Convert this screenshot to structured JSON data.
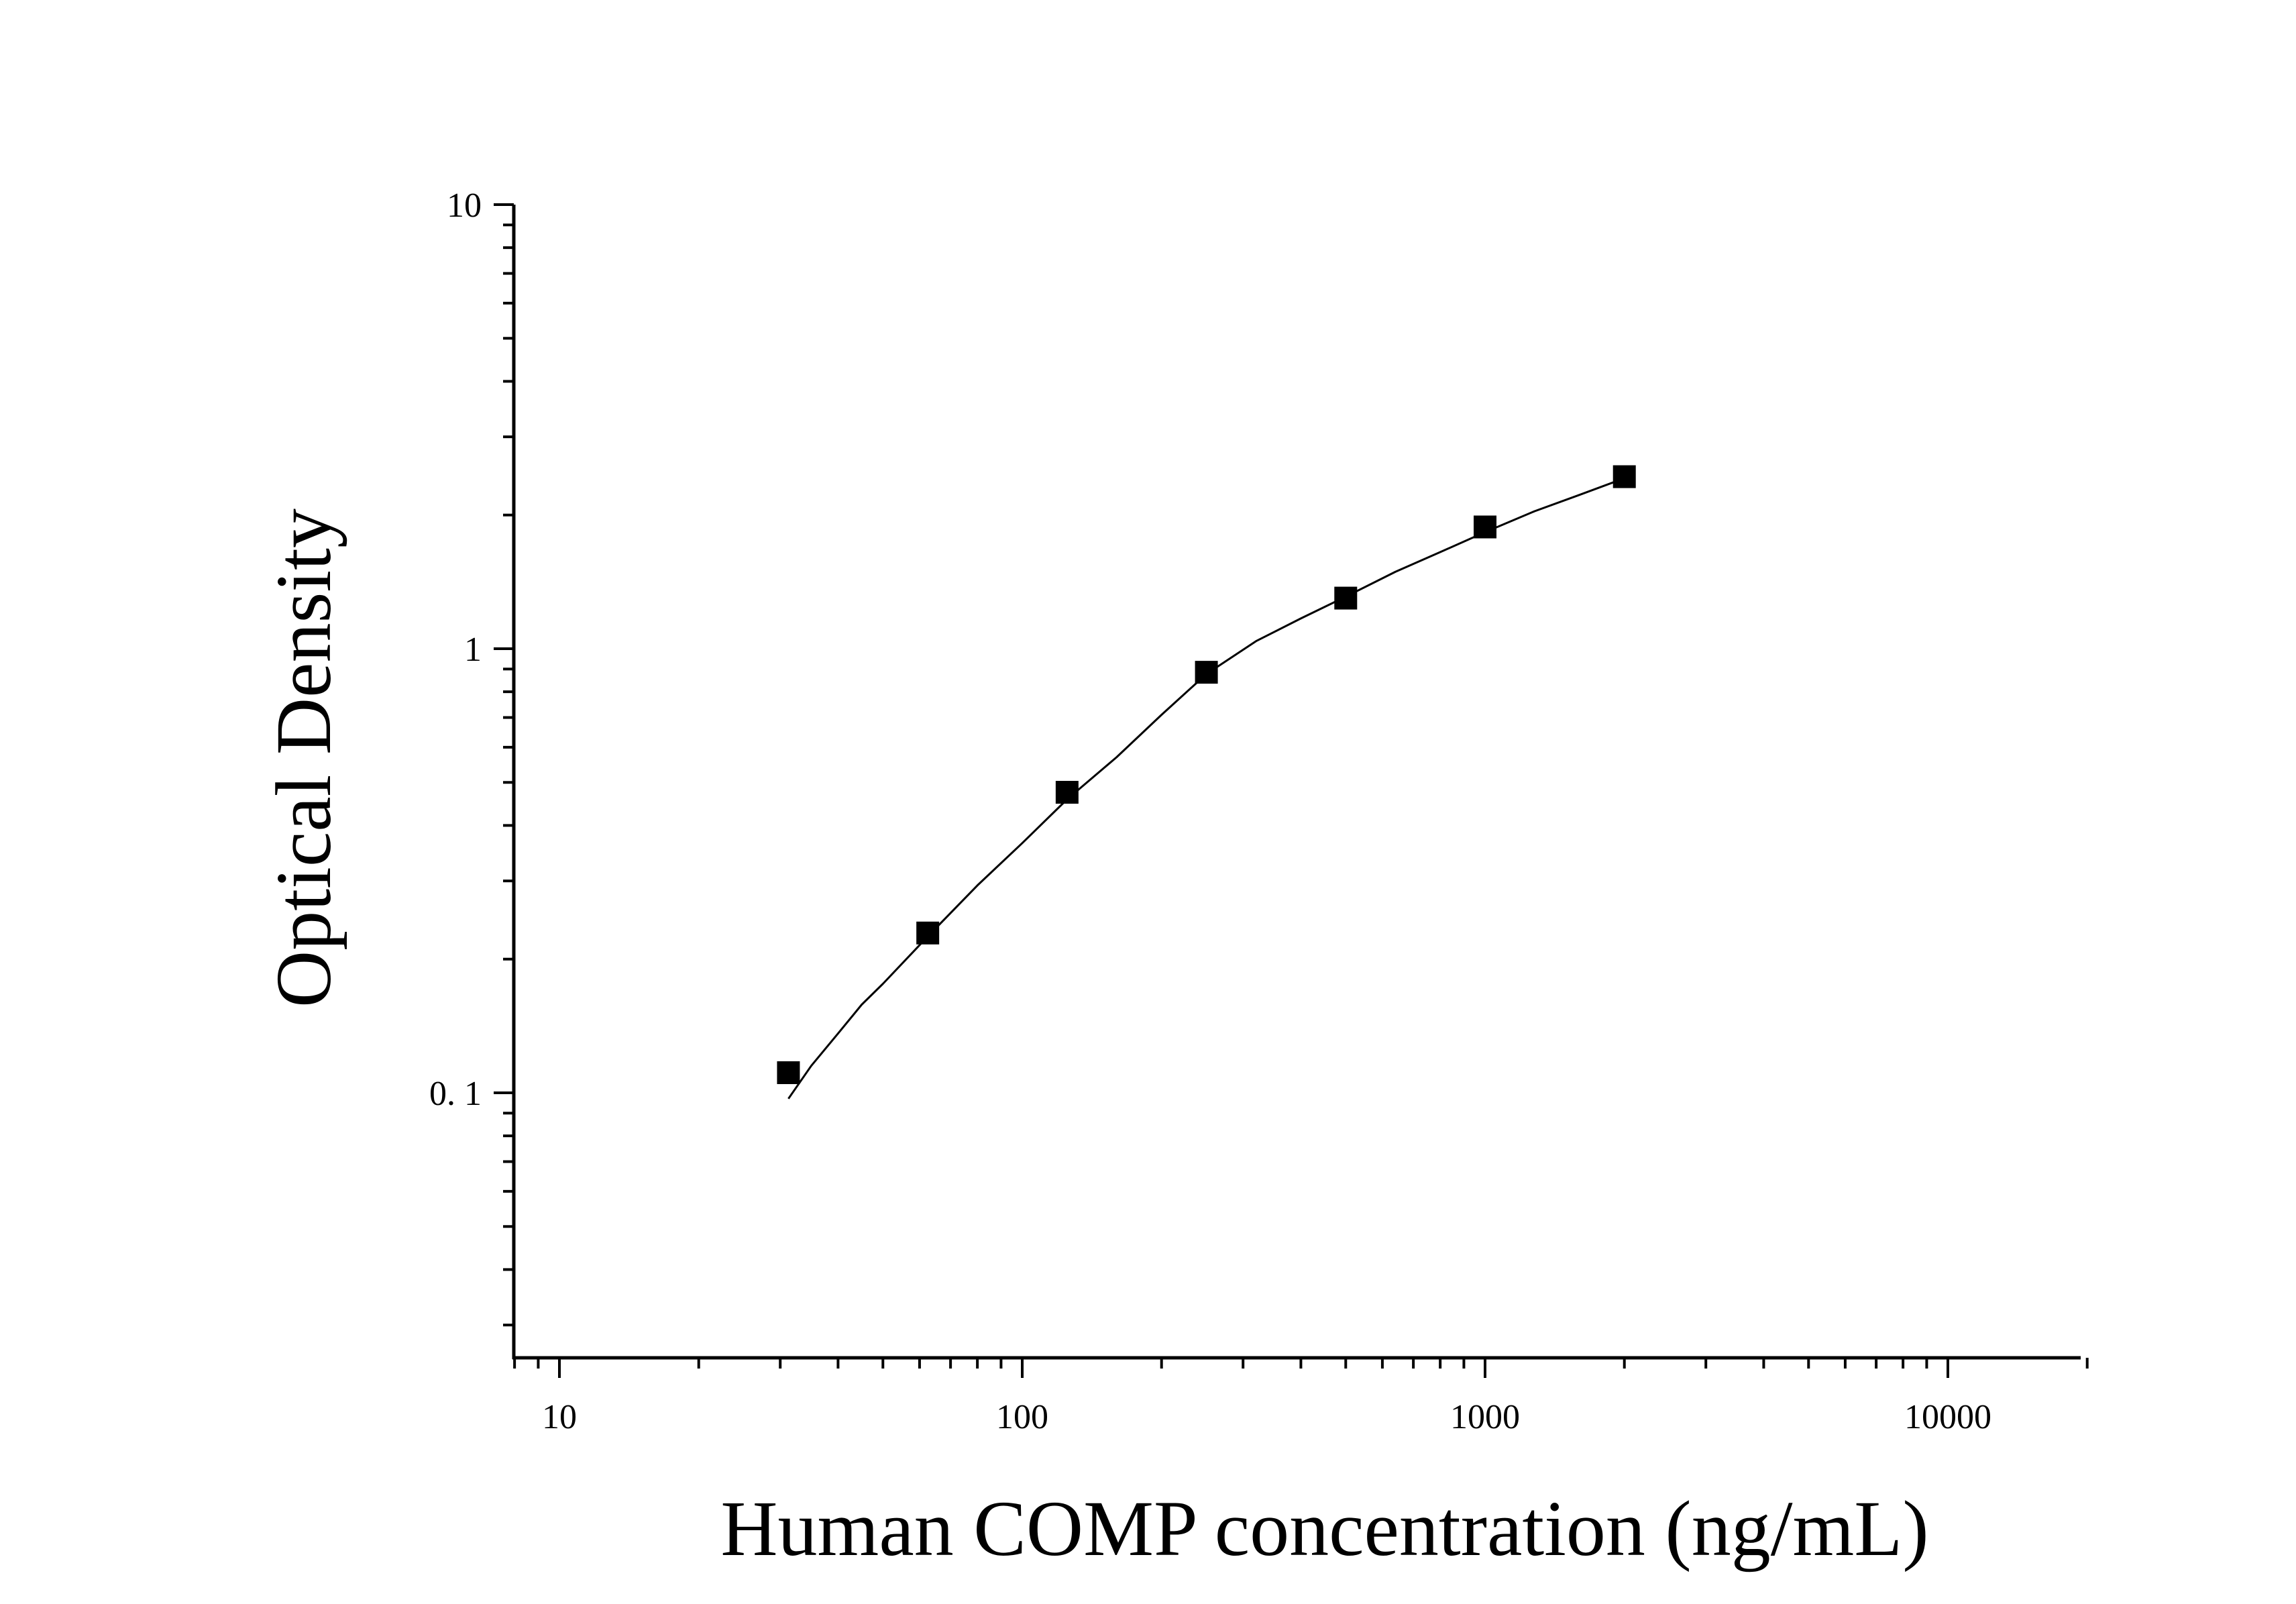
{
  "chart_data": {
    "type": "scatter",
    "title": "",
    "xlabel": "Human COMP concentration (ng/mL)",
    "ylabel": "Optical Density",
    "x_scale": "log",
    "y_scale": "log",
    "xlim": [
      8,
      20000
    ],
    "ylim": [
      0.025,
      10
    ],
    "x_ticks": [
      {
        "value": 10,
        "label": "10"
      },
      {
        "value": 100,
        "label": "100"
      },
      {
        "value": 1000,
        "label": "1000"
      },
      {
        "value": 10000,
        "label": "10000"
      }
    ],
    "y_ticks": [
      {
        "value": 0.1,
        "label": "0. 1"
      },
      {
        "value": 1,
        "label": "1"
      },
      {
        "value": 10,
        "label": "10"
      }
    ],
    "grid": false,
    "legend": "none",
    "series": [
      {
        "marker": "square",
        "color": "#000000",
        "x": [
          31.25,
          62.5,
          125,
          250,
          500,
          1000,
          2000
        ],
        "y": [
          0.111,
          0.229,
          0.475,
          0.885,
          1.3,
          1.88,
          2.44
        ]
      }
    ],
    "fit_curve": {
      "color": "#000000",
      "x": [
        31.25,
        35,
        40,
        45,
        50,
        62.5,
        80,
        100,
        125,
        160,
        200,
        250,
        320,
        400,
        500,
        640,
        800,
        1000,
        1280,
        1600,
        2000
      ],
      "y": [
        0.097,
        0.115,
        0.136,
        0.158,
        0.176,
        0.225,
        0.293,
        0.365,
        0.458,
        0.57,
        0.71,
        0.877,
        1.04,
        1.17,
        1.31,
        1.49,
        1.65,
        1.83,
        2.04,
        2.22,
        2.42
      ]
    }
  }
}
